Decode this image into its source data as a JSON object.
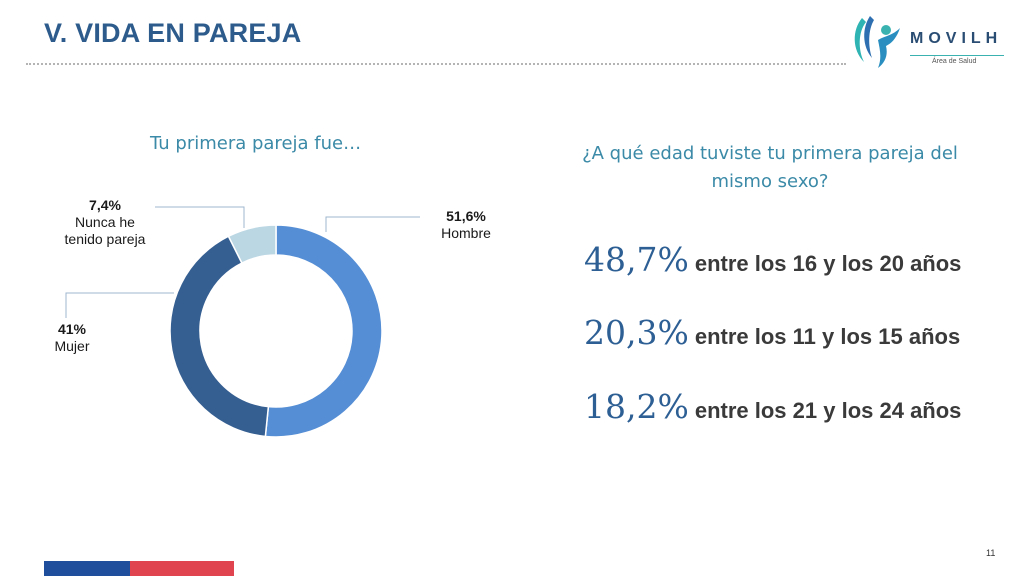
{
  "header": {
    "title": "V. VIDA EN PAREJA",
    "logo_text": "MOVILH",
    "logo_subtext": "Área de Salud"
  },
  "chart_data": {
    "type": "pie",
    "style": "donut",
    "title": "Tu primera pareja fue…",
    "slices": [
      {
        "label": "Hombre",
        "value": 51.6,
        "value_label": "51,6%",
        "color": "#558ed5"
      },
      {
        "label": "Mujer",
        "value": 41.0,
        "value_label": "41%",
        "color": "#355e91"
      },
      {
        "label": "Nunca he tenido pareja",
        "value": 7.4,
        "value_label": "7,4%",
        "color": "#bcd7e4"
      }
    ]
  },
  "question": {
    "text": "¿A qué edad tuviste tu primera pareja del mismo sexo?"
  },
  "stats": [
    {
      "value": "48,7%",
      "text": "entre los 16 y los 20 años"
    },
    {
      "value": "20,3%",
      "text": "entre los 11 y los 15 años"
    },
    {
      "value": "18,2%",
      "text": "entre los 21 y los 24 años"
    }
  ],
  "footer": {
    "page_number": "11",
    "bar_colors": [
      "#1f4f9c",
      "#e0454f"
    ]
  }
}
